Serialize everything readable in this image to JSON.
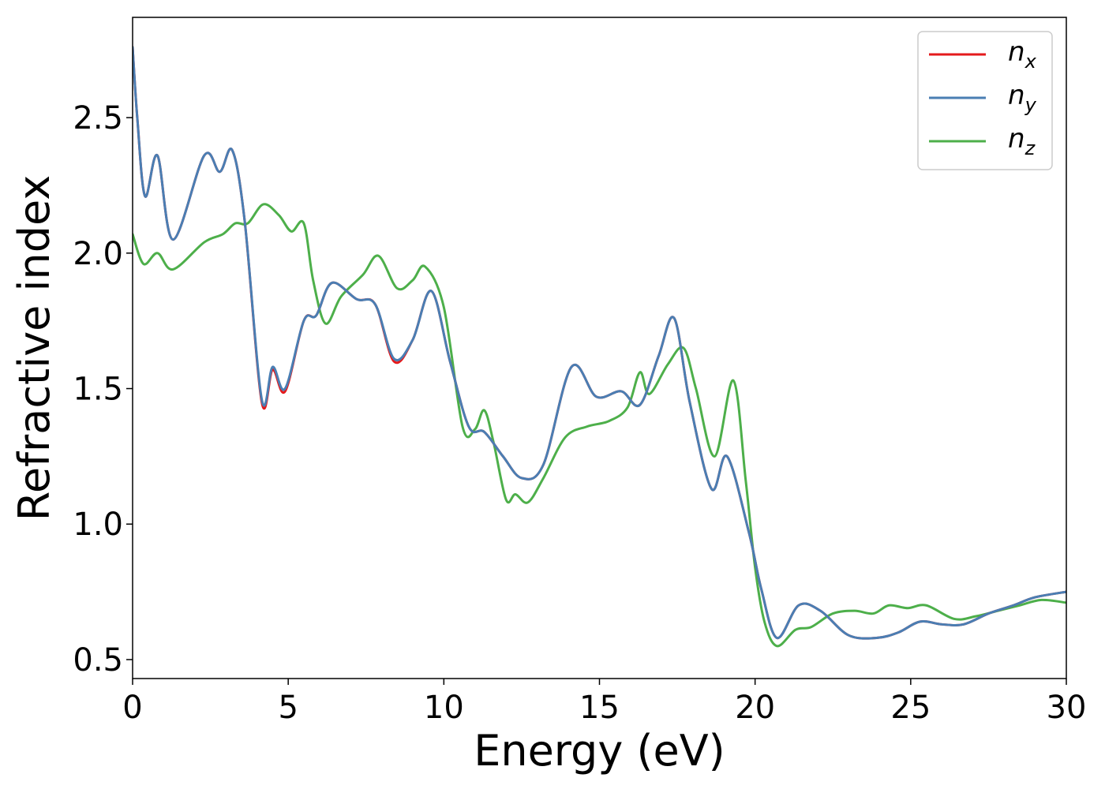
{
  "chart_data": {
    "type": "line",
    "title": "",
    "xlabel": "Energy (eV)",
    "ylabel": "Refractive index",
    "xlim": [
      0,
      30
    ],
    "ylim": [
      0.43,
      2.87
    ],
    "xticks": [
      0,
      5,
      10,
      15,
      20,
      25,
      30
    ],
    "xtick_labels": [
      "0",
      "5",
      "10",
      "15",
      "20",
      "25",
      "30"
    ],
    "yticks": [
      0.5,
      1.0,
      1.5,
      2.0,
      2.5
    ],
    "ytick_labels": [
      "0.5",
      "1.0",
      "1.5",
      "2.0",
      "2.5"
    ],
    "grid": false,
    "legend_position": "top-right",
    "series": [
      {
        "name": "n_x",
        "label_main": "n",
        "label_sub": "x",
        "color": "#e41a1c",
        "x": [
          0,
          0.15,
          0.4,
          0.8,
          1.3,
          2.3,
          2.8,
          3.2,
          3.6,
          4.15,
          4.5,
          4.9,
          5.5,
          5.9,
          6.4,
          7.2,
          7.8,
          8.4,
          9.0,
          9.6,
          10.2,
          10.8,
          11.3,
          11.9,
          12.5,
          13.2,
          14.1,
          14.9,
          15.7,
          16.3,
          16.9,
          17.4,
          17.9,
          18.6,
          19.1,
          19.8,
          20.2,
          20.7,
          21.4,
          22.1,
          23.0,
          23.9,
          24.6,
          25.3,
          26.0,
          26.7,
          27.5,
          28.3,
          29.0,
          30
        ],
        "y": [
          2.76,
          2.5,
          2.21,
          2.36,
          2.05,
          2.36,
          2.3,
          2.38,
          2.12,
          1.45,
          1.57,
          1.49,
          1.75,
          1.77,
          1.89,
          1.83,
          1.81,
          1.6,
          1.68,
          1.86,
          1.6,
          1.36,
          1.34,
          1.25,
          1.17,
          1.22,
          1.58,
          1.47,
          1.49,
          1.44,
          1.62,
          1.76,
          1.45,
          1.13,
          1.25,
          0.97,
          0.76,
          0.58,
          0.7,
          0.68,
          0.59,
          0.58,
          0.6,
          0.64,
          0.63,
          0.63,
          0.67,
          0.7,
          0.73,
          0.75
        ]
      },
      {
        "name": "n_y",
        "label_main": "n",
        "label_sub": "y",
        "color": "#4a7eb3",
        "x": [
          0,
          0.15,
          0.4,
          0.8,
          1.3,
          2.3,
          2.8,
          3.2,
          3.6,
          4.15,
          4.5,
          4.9,
          5.5,
          5.9,
          6.4,
          7.2,
          7.8,
          8.4,
          9.0,
          9.6,
          10.2,
          10.8,
          11.3,
          11.9,
          12.5,
          13.2,
          14.1,
          14.9,
          15.7,
          16.3,
          16.9,
          17.4,
          17.9,
          18.6,
          19.1,
          19.8,
          20.2,
          20.7,
          21.4,
          22.1,
          23.0,
          23.9,
          24.6,
          25.3,
          26.0,
          26.7,
          27.5,
          28.3,
          29.0,
          30
        ],
        "y": [
          2.76,
          2.5,
          2.21,
          2.36,
          2.05,
          2.36,
          2.3,
          2.38,
          2.12,
          1.46,
          1.58,
          1.5,
          1.75,
          1.77,
          1.89,
          1.83,
          1.81,
          1.61,
          1.68,
          1.86,
          1.6,
          1.36,
          1.34,
          1.25,
          1.17,
          1.22,
          1.58,
          1.47,
          1.49,
          1.44,
          1.62,
          1.76,
          1.45,
          1.13,
          1.25,
          0.97,
          0.76,
          0.58,
          0.7,
          0.68,
          0.59,
          0.58,
          0.6,
          0.64,
          0.63,
          0.63,
          0.67,
          0.7,
          0.73,
          0.75
        ]
      },
      {
        "name": "n_z",
        "label_main": "n",
        "label_sub": "z",
        "color": "#4daf4a",
        "x": [
          0,
          0.35,
          0.8,
          1.3,
          2.3,
          2.9,
          3.3,
          3.7,
          4.2,
          4.7,
          5.1,
          5.5,
          5.8,
          6.2,
          6.7,
          7.4,
          7.9,
          8.5,
          9.0,
          9.4,
          10.0,
          10.6,
          11.0,
          11.3,
          11.6,
          12.0,
          12.3,
          12.7,
          13.2,
          13.9,
          14.6,
          15.3,
          15.9,
          16.3,
          16.6,
          17.2,
          17.7,
          18.1,
          18.7,
          19.3,
          19.7,
          20.0,
          20.3,
          20.7,
          21.3,
          21.8,
          22.5,
          23.2,
          23.8,
          24.3,
          24.9,
          25.5,
          26.4,
          27.1,
          27.8,
          28.5,
          29.2,
          30
        ],
        "y": [
          2.07,
          1.96,
          2.0,
          1.94,
          2.04,
          2.07,
          2.11,
          2.11,
          2.18,
          2.14,
          2.08,
          2.11,
          1.9,
          1.74,
          1.84,
          1.92,
          1.99,
          1.87,
          1.9,
          1.95,
          1.8,
          1.36,
          1.35,
          1.42,
          1.3,
          1.09,
          1.11,
          1.08,
          1.17,
          1.32,
          1.36,
          1.38,
          1.43,
          1.56,
          1.48,
          1.59,
          1.65,
          1.5,
          1.25,
          1.53,
          1.16,
          0.84,
          0.64,
          0.55,
          0.61,
          0.62,
          0.67,
          0.68,
          0.67,
          0.7,
          0.69,
          0.7,
          0.65,
          0.66,
          0.68,
          0.7,
          0.72,
          0.71
        ]
      }
    ]
  }
}
